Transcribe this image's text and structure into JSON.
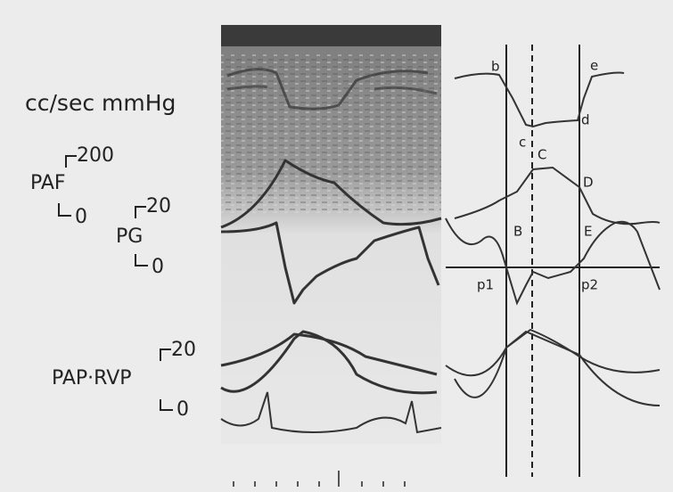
{
  "units": "cc/sec mmHg",
  "scales": [
    {
      "label": "PAF",
      "top": "200",
      "bottom": "0"
    },
    {
      "label": "PG",
      "top": "20",
      "bottom": "0"
    },
    {
      "label": "PAP·RVP",
      "top": "20",
      "bottom": "0"
    }
  ],
  "points": [
    "b",
    "c",
    "d",
    "e",
    "B",
    "C",
    "D",
    "E",
    "p1",
    "p2"
  ]
}
